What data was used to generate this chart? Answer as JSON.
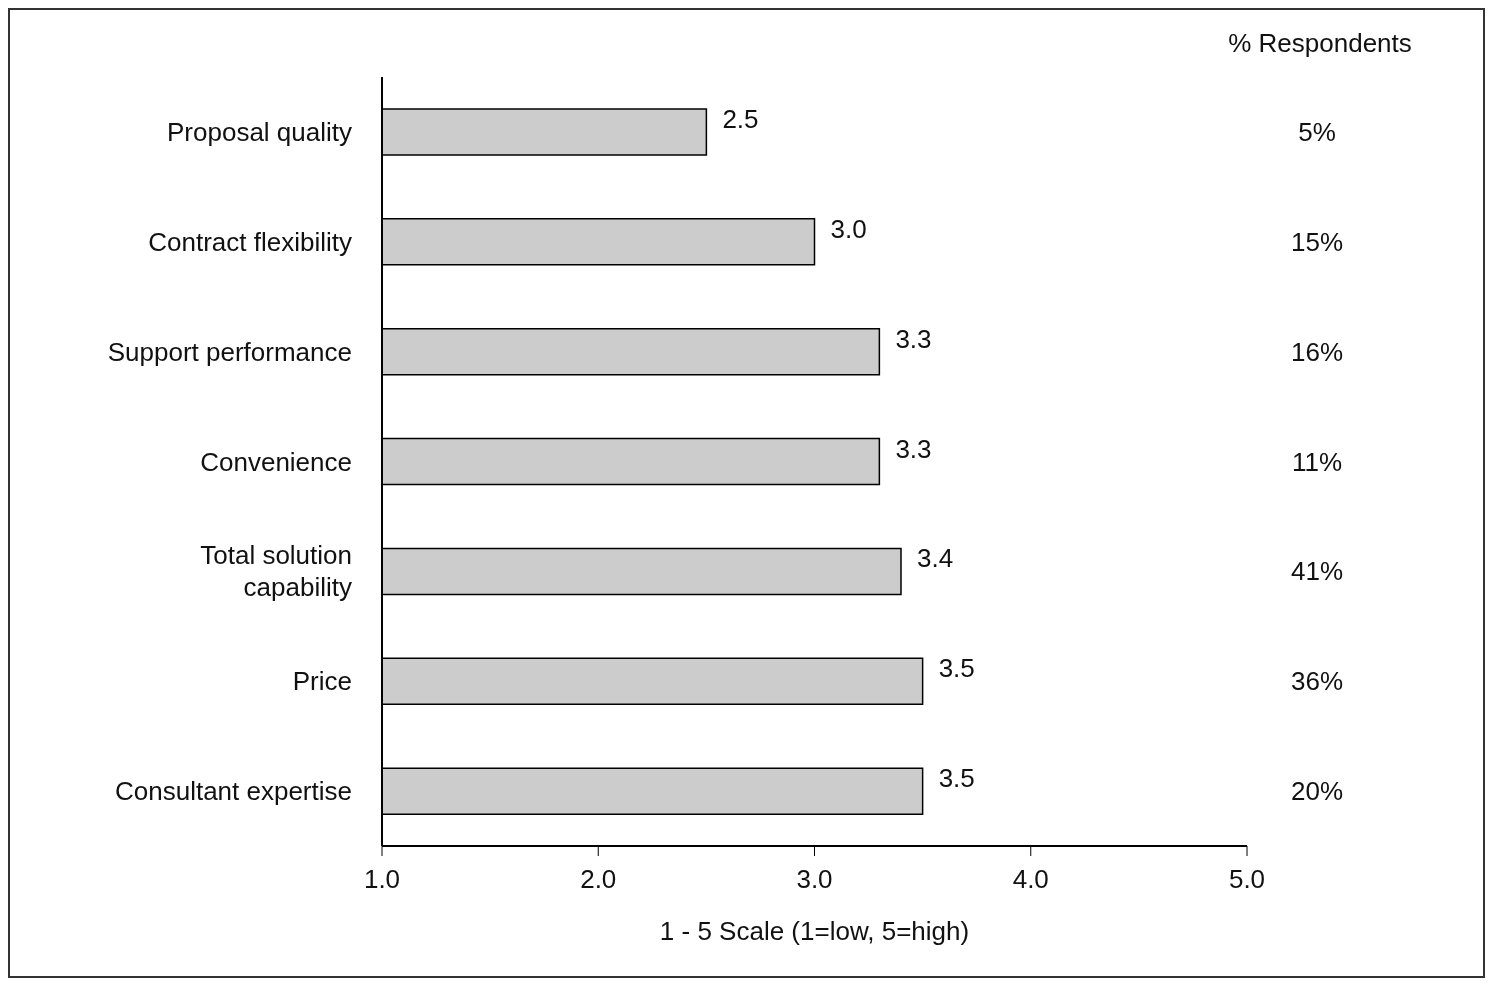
{
  "chart_data": {
    "type": "bar",
    "orientation": "horizontal",
    "xlabel": "1 - 5 Scale (1=low, 5=high)",
    "categories": [
      "Proposal quality",
      "Contract flexibility",
      "Support performance",
      "Convenience",
      "Total solution capability",
      "Price",
      "Consultant expertise"
    ],
    "values": [
      2.5,
      3.0,
      3.3,
      3.3,
      3.4,
      3.5,
      3.5
    ],
    "value_labels": [
      "2.5",
      "3.0",
      "3.3",
      "3.3",
      "3.4",
      "3.5",
      "3.5"
    ],
    "color": "#cccccc",
    "xlim": [
      1,
      5
    ],
    "xticks": [
      {
        "value": 1,
        "label": "1.0"
      },
      {
        "value": 2,
        "label": "2.0"
      },
      {
        "value": 3,
        "label": "3.0"
      },
      {
        "value": 4,
        "label": "4.0"
      },
      {
        "value": 5,
        "label": "5.0"
      }
    ],
    "grid": false,
    "legend": false,
    "annotations": [
      "% Respondents",
      "5%",
      "15%",
      "16%",
      "11%",
      "41%",
      "36%",
      "20%"
    ]
  }
}
